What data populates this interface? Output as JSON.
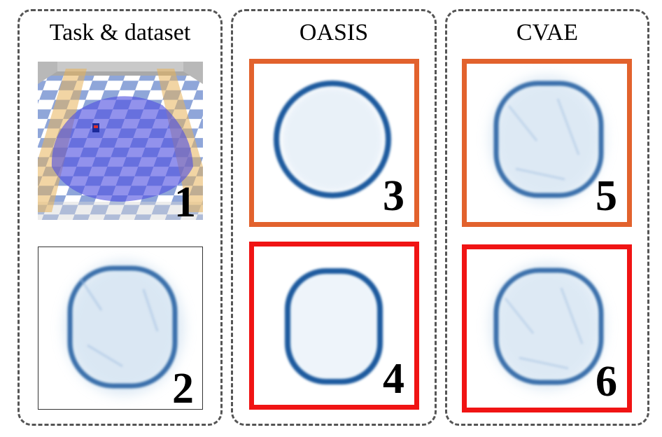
{
  "columns": [
    {
      "title": "Task & dataset"
    },
    {
      "title": "OASIS"
    },
    {
      "title": "CVAE"
    }
  ],
  "panels": {
    "task": {
      "number": "1"
    },
    "dataset": {
      "number": "2"
    },
    "oasis_top": {
      "number": "3",
      "border_color": "#e2622d"
    },
    "oasis_bottom": {
      "number": "4",
      "border_color": "#f01414"
    },
    "cvae_top": {
      "number": "5",
      "border_color": "#e2622d"
    },
    "cvae_bottom": {
      "number": "6",
      "border_color": "#f01414"
    }
  },
  "colors": {
    "ring": "#1d5a9e",
    "haze": "#bcd4ea",
    "safe_region": "#4f4fe0",
    "hazard": "#e7b35a",
    "dashed_border": "#555555"
  }
}
